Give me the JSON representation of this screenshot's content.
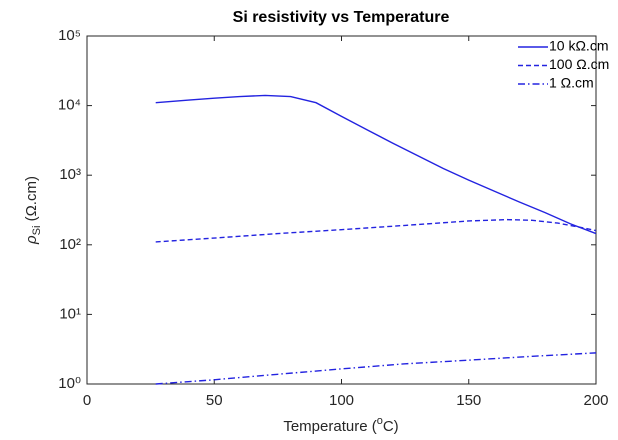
{
  "chart_data": {
    "type": "line",
    "title": "Si resistivity vs Temperature",
    "xlabel": {
      "text": "Temperature (",
      "superscript": "o",
      "suffix": "C)"
    },
    "ylabel": {
      "symbol": "ρ",
      "subscript": "Si",
      "unit": " (Ω.cm)"
    },
    "xlim": [
      0,
      200
    ],
    "xticks": [
      0,
      50,
      100,
      150,
      200
    ],
    "ylim": [
      1,
      100000
    ],
    "ylog": true,
    "yticks": [
      {
        "value": 1,
        "label": "10⁰"
      },
      {
        "value": 10,
        "label": "10¹"
      },
      {
        "value": 100,
        "label": "10²"
      },
      {
        "value": 1000,
        "label": "10³"
      },
      {
        "value": 10000,
        "label": "10⁴"
      },
      {
        "value": 100000,
        "label": "10⁵"
      }
    ],
    "grid": false,
    "legend": "upper right",
    "series": [
      {
        "name": "10 kΩ.cm",
        "color": "#2323e0",
        "style": "solid",
        "x": [
          27,
          40,
          50,
          60,
          70,
          80,
          90,
          100,
          110,
          120,
          130,
          140,
          150,
          160,
          170,
          180,
          190,
          200
        ],
        "values": [
          11000,
          12000,
          12800,
          13500,
          14000,
          13500,
          11000,
          7000,
          4500,
          2900,
          1900,
          1250,
          850,
          590,
          410,
          290,
          200,
          145
        ]
      },
      {
        "name": "100 Ω.cm",
        "color": "#2323e0",
        "style": "dashed",
        "x": [
          27,
          50,
          75,
          100,
          125,
          150,
          165,
          175,
          185,
          195,
          200
        ],
        "values": [
          110,
          125,
          145,
          165,
          190,
          220,
          230,
          225,
          205,
          175,
          160
        ]
      },
      {
        "name": "1 Ω.cm",
        "color": "#2323e0",
        "style": "dashdot",
        "x": [
          27,
          50,
          75,
          100,
          125,
          150,
          175,
          200
        ],
        "values": [
          1.0,
          1.15,
          1.38,
          1.65,
          1.95,
          2.2,
          2.5,
          2.8
        ]
      }
    ]
  }
}
